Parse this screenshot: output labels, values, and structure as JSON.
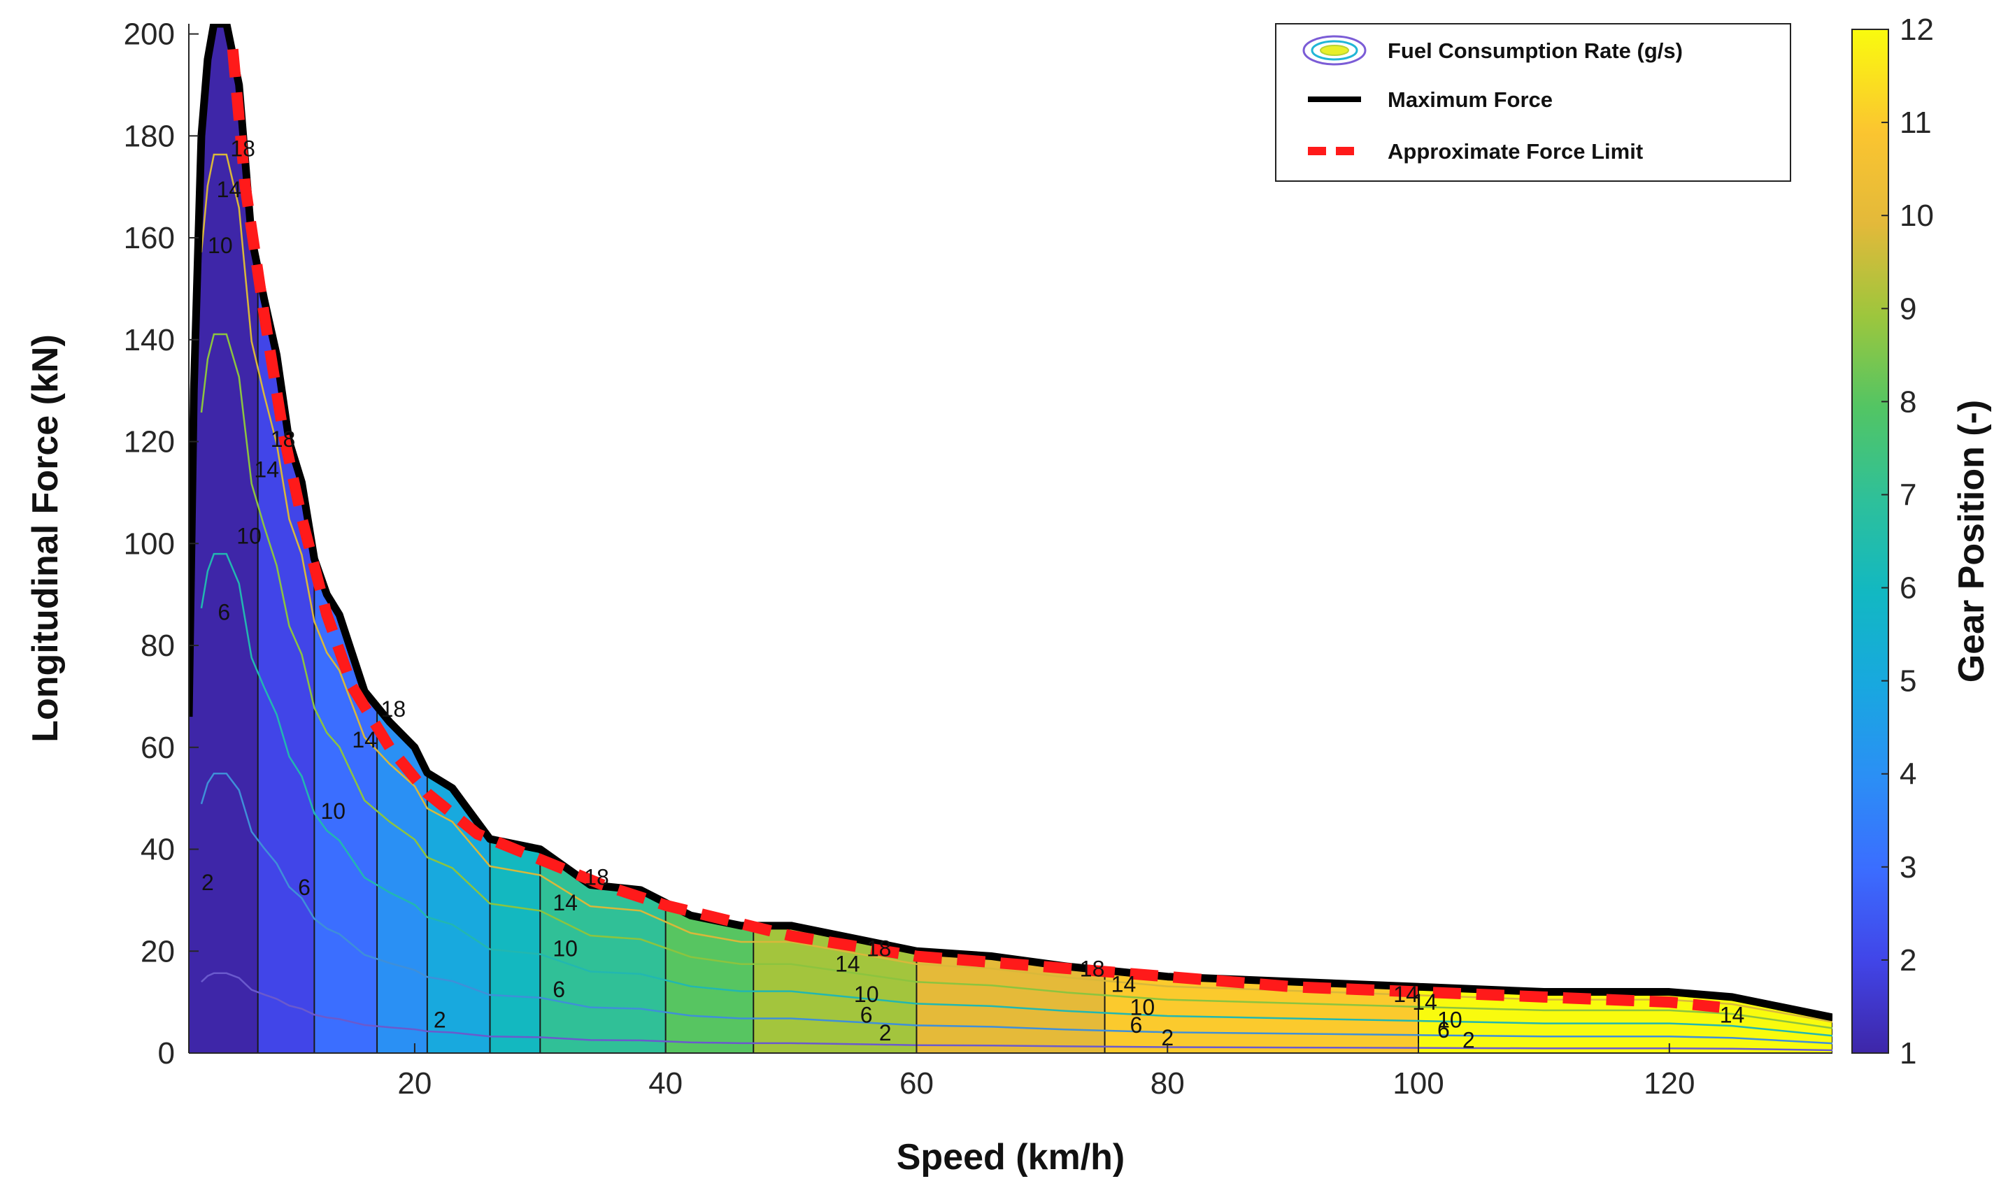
{
  "chart_data": {
    "type": "area",
    "xlabel": "Speed (km/h)",
    "ylabel": "Longitudinal Force (kN)",
    "xlim": [
      2,
      133
    ],
    "ylim": [
      0,
      202
    ],
    "x_ticks": [
      20,
      40,
      60,
      80,
      100,
      120
    ],
    "y_ticks": [
      0,
      20,
      40,
      60,
      80,
      100,
      120,
      140,
      160,
      180,
      200
    ],
    "colorbar": {
      "label": "Gear Position (-)",
      "range": [
        1,
        12
      ],
      "ticks": [
        1,
        2,
        3,
        4,
        5,
        6,
        7,
        8,
        9,
        10,
        11,
        12
      ]
    },
    "legend": {
      "position": "top-right",
      "entries": [
        {
          "label": "Fuel Consumption Rate (g/s)",
          "style": "contour"
        },
        {
          "label": "Maximum Force",
          "style": "solid",
          "color": "#000000"
        },
        {
          "label": "Approximate Force Limit",
          "style": "dashed",
          "color": "#ff1a1a"
        }
      ]
    },
    "series": [
      {
        "name": "Maximum Force",
        "x": [
          2,
          2.4,
          3,
          3.5,
          4,
          5,
          6,
          7,
          8,
          9,
          10,
          11,
          12,
          13,
          14,
          16,
          18,
          20,
          21,
          23,
          26,
          30,
          34,
          38,
          42,
          46,
          50,
          56,
          60,
          66,
          72,
          80,
          90,
          100,
          110,
          120,
          125,
          133
        ],
        "y": [
          66,
          130,
          180,
          195,
          202,
          202,
          190,
          160,
          148,
          137,
          120,
          112,
          97,
          90,
          86,
          71,
          65,
          60,
          55,
          52,
          42,
          40,
          33,
          32,
          27,
          25,
          25,
          22,
          20,
          19,
          17,
          15,
          14,
          13,
          12,
          12,
          11,
          7
        ]
      },
      {
        "name": "Approximate Force Limit",
        "x": [
          5.5,
          6.5,
          8,
          9.5,
          11,
          13,
          15,
          18,
          21,
          25,
          30,
          35,
          40,
          45,
          50,
          60,
          70,
          80,
          90,
          100,
          110,
          120,
          124
        ],
        "y": [
          197,
          170,
          145,
          122,
          105,
          86,
          72,
          60,
          51,
          43,
          38,
          33,
          29,
          26,
          23,
          19,
          17,
          15,
          13,
          12,
          11,
          10,
          9
        ]
      }
    ],
    "gear_regions": [
      {
        "gear": 1,
        "x_start": 2,
        "x_end": 7.5
      },
      {
        "gear": 2,
        "x_start": 3,
        "x_end": 12
      },
      {
        "gear": 3,
        "x_start": 5,
        "x_end": 17
      },
      {
        "gear": 4,
        "x_start": 7,
        "x_end": 21
      },
      {
        "gear": 5,
        "x_start": 9,
        "x_end": 26
      },
      {
        "gear": 6,
        "x_start": 11,
        "x_end": 30
      },
      {
        "gear": 7,
        "x_start": 14,
        "x_end": 40
      },
      {
        "gear": 8,
        "x_start": 17,
        "x_end": 47
      },
      {
        "gear": 9,
        "x_start": 22,
        "x_end": 60
      },
      {
        "gear": 10,
        "x_start": 28,
        "x_end": 75
      },
      {
        "gear": 11,
        "x_start": 35,
        "x_end": 100
      },
      {
        "gear": 12,
        "x_start": 45,
        "x_end": 133
      }
    ],
    "contour_labels": [
      {
        "text": "18",
        "x": 6.3,
        "y": 176
      },
      {
        "text": "14",
        "x": 5.2,
        "y": 168
      },
      {
        "text": "10",
        "x": 4.5,
        "y": 157
      },
      {
        "text": "18",
        "x": 9.5,
        "y": 119
      },
      {
        "text": "14",
        "x": 8.2,
        "y": 113
      },
      {
        "text": "10",
        "x": 6.8,
        "y": 100
      },
      {
        "text": "6",
        "x": 4.8,
        "y": 85
      },
      {
        "text": "18",
        "x": 18.3,
        "y": 66
      },
      {
        "text": "14",
        "x": 16,
        "y": 60
      },
      {
        "text": "10",
        "x": 13.5,
        "y": 46
      },
      {
        "text": "6",
        "x": 11.2,
        "y": 31
      },
      {
        "text": "2",
        "x": 3.5,
        "y": 32
      },
      {
        "text": "18",
        "x": 34.5,
        "y": 33
      },
      {
        "text": "14",
        "x": 32,
        "y": 28
      },
      {
        "text": "10",
        "x": 32,
        "y": 19
      },
      {
        "text": "6",
        "x": 31.5,
        "y": 11
      },
      {
        "text": "2",
        "x": 22,
        "y": 5
      },
      {
        "text": "18",
        "x": 57,
        "y": 19
      },
      {
        "text": "14",
        "x": 54.5,
        "y": 16
      },
      {
        "text": "10",
        "x": 56,
        "y": 10
      },
      {
        "text": "6",
        "x": 56,
        "y": 6
      },
      {
        "text": "2",
        "x": 57.5,
        "y": 2.5
      },
      {
        "text": "18",
        "x": 74,
        "y": 15
      },
      {
        "text": "14",
        "x": 76.5,
        "y": 12
      },
      {
        "text": "10",
        "x": 78,
        "y": 7.5
      },
      {
        "text": "6",
        "x": 77.5,
        "y": 4
      },
      {
        "text": "2",
        "x": 80,
        "y": 1.5
      },
      {
        "text": "14",
        "x": 99,
        "y": 10
      },
      {
        "text": "14",
        "x": 100.5,
        "y": 8.5
      },
      {
        "text": "10",
        "x": 102.5,
        "y": 5
      },
      {
        "text": "6",
        "x": 102,
        "y": 3
      },
      {
        "text": "2",
        "x": 104,
        "y": 1
      },
      {
        "text": "14",
        "x": 125,
        "y": 6
      }
    ]
  }
}
